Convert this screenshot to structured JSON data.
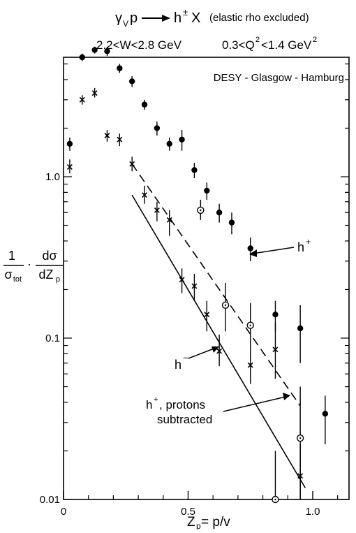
{
  "header": {
    "reaction": "γ",
    "reaction_v": "V",
    "reaction_p": "p",
    "reaction_h": "h",
    "reaction_pm": "±",
    "reaction_X": "X",
    "reaction_note": "(elastic rho excluded)",
    "w_range": "2.2<W<2.8 GeV",
    "q2_range_a": "0.3<Q",
    "q2_range_sup": "2",
    "q2_range_b": "<1.4 GeV",
    "q2_range_sup2": "2"
  },
  "chart_data": {
    "type": "scatter",
    "title": "DESY - Glasgow - Hamburg",
    "xlabel": "Z_p = p/ν",
    "ylabel": "1/σ_tot · dσ/dZ_p",
    "xscale": "linear",
    "yscale": "log",
    "xlim": [
      0,
      1.2
    ],
    "ylim": [
      0.01,
      30
    ],
    "x_ticks": [
      0,
      0.5,
      1.0
    ],
    "x_tick_labels": [
      "0",
      "0.5",
      "1.0"
    ],
    "y_ticks": [
      0.01,
      0.1,
      1.0
    ],
    "y_tick_labels": [
      "0.01",
      "0.1",
      "1.0"
    ],
    "series": [
      {
        "name": "h+",
        "marker": "filled-circle",
        "x": [
          0.025,
          0.075,
          0.125,
          0.175,
          0.225,
          0.275,
          0.325,
          0.375,
          0.425,
          0.475,
          0.525,
          0.575,
          0.625,
          0.675,
          0.75,
          0.85,
          0.95,
          1.05
        ],
        "y": [
          1.6,
          5.5,
          6.1,
          6.0,
          4.7,
          3.9,
          2.8,
          2.0,
          1.6,
          1.7,
          1.1,
          0.82,
          0.6,
          0.52,
          0.36,
          0.14,
          0.115,
          0.034
        ],
        "err_low": [
          1.45,
          5.2,
          5.8,
          5.6,
          4.4,
          3.6,
          2.6,
          1.8,
          1.45,
          1.45,
          0.98,
          0.72,
          0.52,
          0.44,
          0.3,
          0.11,
          0.07,
          0.022
        ],
        "err_high": [
          1.75,
          5.8,
          6.4,
          6.4,
          5.0,
          4.2,
          3.0,
          2.2,
          1.75,
          1.95,
          1.22,
          0.92,
          0.68,
          0.6,
          0.42,
          0.17,
          0.16,
          0.044
        ]
      },
      {
        "name": "h−",
        "marker": "cross",
        "x": [
          0.025,
          0.075,
          0.125,
          0.175,
          0.225,
          0.275,
          0.325,
          0.375,
          0.425,
          0.475,
          0.525,
          0.575,
          0.625,
          0.75,
          0.85,
          0.95
        ],
        "y": [
          1.15,
          3.0,
          3.3,
          1.8,
          1.7,
          1.2,
          0.77,
          0.62,
          0.54,
          0.23,
          0.21,
          0.14,
          0.083,
          0.068,
          0.085,
          0.014
        ],
        "err_low": [
          1.05,
          2.8,
          3.1,
          1.65,
          1.55,
          1.08,
          0.68,
          0.53,
          0.43,
          0.19,
          0.17,
          0.11,
          0.067,
          0.052,
          0.056,
          0.006
        ],
        "err_high": [
          1.28,
          3.2,
          3.55,
          1.95,
          1.85,
          1.33,
          0.88,
          0.7,
          0.62,
          0.27,
          0.25,
          0.17,
          0.105,
          0.085,
          0.125,
          0.022
        ]
      },
      {
        "name": "h+, protons subtracted",
        "marker": "open-circle",
        "x": [
          0.55,
          0.65,
          0.75,
          0.85,
          0.95
        ],
        "y": [
          0.62,
          0.16,
          0.12,
          0.01,
          0.024
        ],
        "err_low": [
          0.54,
          0.11,
          0.085,
          0.006,
          0.01
        ],
        "err_high": [
          0.72,
          0.22,
          0.165,
          0.02,
          0.05
        ]
      }
    ],
    "lines": [
      {
        "name": "dashed",
        "style": "dashed",
        "x": [
          0.275,
          0.95
        ],
        "y": [
          1.2,
          0.038
        ]
      },
      {
        "name": "solid",
        "style": "solid",
        "x": [
          0.275,
          0.97
        ],
        "y": [
          0.77,
          0.0118
        ]
      }
    ],
    "annotations": [
      {
        "text_main": "h",
        "text_sup": "+",
        "target_x": 0.75,
        "target_y": 0.36
      },
      {
        "text_main": "h",
        "text_sup": "−",
        "target_x": 0.625,
        "target_y": 0.083
      },
      {
        "text_main": "h",
        "text_sup": "+",
        "text_rest": ", protons",
        "text_line2": "subtracted",
        "target_x": 0.93,
        "target_y": 0.034
      }
    ],
    "ylabel_parts": {
      "num1": "1",
      "den1": "σ",
      "den1_sub": "tot",
      "dot": "·",
      "num2": "dσ",
      "den2": "dZ",
      "den2_sub": "p"
    },
    "xlabel_parts": {
      "main": "Z",
      "sub": "p",
      "rest": " = p/v"
    }
  }
}
